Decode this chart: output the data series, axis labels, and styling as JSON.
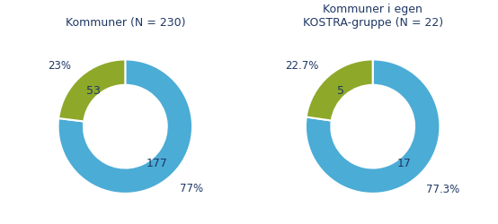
{
  "chart1": {
    "title": "Kommuner (N = 230)",
    "values": [
      177,
      53
    ],
    "percentages": [
      "77%",
      "23%"
    ],
    "labels": [
      "177",
      "53"
    ],
    "colors": [
      "#4BACD6",
      "#8EA82A"
    ]
  },
  "chart2": {
    "title": "Kommuner i egen\nKOSTRA-gruppe (N = 22)",
    "values": [
      17,
      5
    ],
    "percentages": [
      "77.3%",
      "22.7%"
    ],
    "labels": [
      "17",
      "5"
    ],
    "colors": [
      "#4BACD6",
      "#8EA82A"
    ]
  },
  "text_color": "#1F3864",
  "background_color": "#FFFFFF",
  "title_fontsize": 9,
  "label_fontsize": 9,
  "pct_fontsize": 8.5,
  "donut_width": 0.38,
  "label_r": 0.72,
  "pct_r": 1.22
}
